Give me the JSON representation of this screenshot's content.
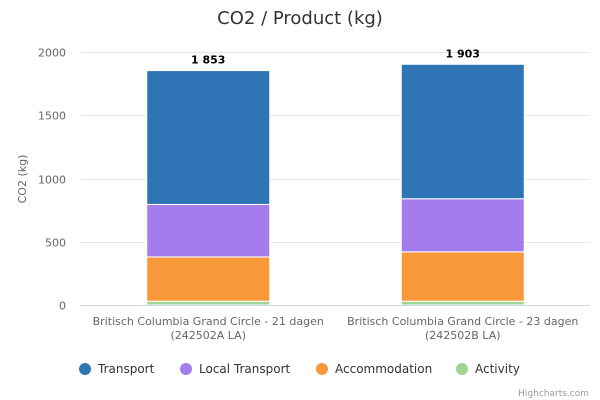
{
  "credits": "Highcharts.com",
  "chart_data": {
    "type": "bar",
    "stacked": true,
    "title": "CO2 / Product (kg)",
    "ylabel": "CO2 (kg)",
    "xlabel": "",
    "ylim": [
      0,
      2000
    ],
    "yticks": [
      "0",
      "500",
      "1000",
      "1500",
      "2000"
    ],
    "grid": true,
    "legend_position": "bottom",
    "categories": [
      [
        "Britisch Columbia Grand Circle - 21 dagen",
        "(242502A LA)"
      ],
      [
        "Britisch Columbia Grand Circle - 23 dagen",
        "(242502B LA)"
      ]
    ],
    "totals": [
      "1 853",
      "1 903"
    ],
    "series": [
      {
        "name": "Activity",
        "color": "#a1d490",
        "values": [
          30,
          30
        ]
      },
      {
        "name": "Accommodation",
        "color": "#f7993a",
        "values": [
          350,
          390
        ]
      },
      {
        "name": "Local Transport",
        "color": "#a57ceb",
        "values": [
          415,
          420
        ]
      },
      {
        "name": "Transport",
        "color": "#2f74b5",
        "values": [
          1058,
          1063
        ]
      }
    ],
    "legend": [
      "Transport",
      "Local Transport",
      "Accommodation",
      "Activity"
    ]
  }
}
